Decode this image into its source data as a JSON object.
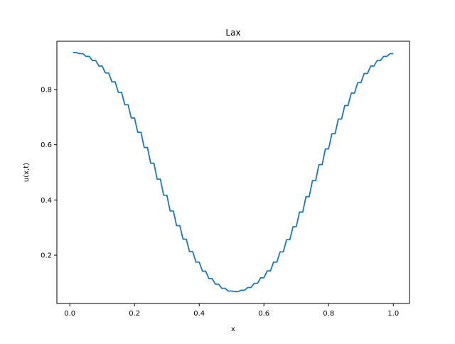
{
  "chart_data": {
    "type": "line",
    "title": "Lax",
    "xlabel": "x",
    "ylabel": "u(x,t)",
    "xlim": [
      -0.04,
      1.05
    ],
    "ylim": [
      0.025,
      0.975
    ],
    "xticks": [
      0.0,
      0.2,
      0.4,
      0.6,
      0.8,
      1.0
    ],
    "xtick_labels": [
      "0.0",
      "0.2",
      "0.4",
      "0.6",
      "0.8",
      "1.0"
    ],
    "yticks": [
      0.2,
      0.4,
      0.6,
      0.8
    ],
    "ytick_labels": [
      "0.2",
      "0.4",
      "0.6",
      "0.8"
    ],
    "grid": false,
    "legend": "none",
    "series": [
      {
        "color": "#1f77b4",
        "x": [
          0.01,
          0.02,
          0.03,
          0.04,
          0.05,
          0.06,
          0.07,
          0.08,
          0.09,
          0.1,
          0.11,
          0.12,
          0.13,
          0.14,
          0.15,
          0.16,
          0.17,
          0.18,
          0.19,
          0.2,
          0.21,
          0.22,
          0.23,
          0.24,
          0.25,
          0.26,
          0.27,
          0.28,
          0.29,
          0.3,
          0.31,
          0.32,
          0.33,
          0.34,
          0.35,
          0.36,
          0.37,
          0.38,
          0.39,
          0.4,
          0.41,
          0.42,
          0.43,
          0.44,
          0.45,
          0.46,
          0.47,
          0.48,
          0.49,
          0.5,
          0.51,
          0.52,
          0.53,
          0.54,
          0.55,
          0.56,
          0.57,
          0.58,
          0.59,
          0.6,
          0.61,
          0.62,
          0.63,
          0.64,
          0.65,
          0.66,
          0.67,
          0.68,
          0.69,
          0.7,
          0.71,
          0.72,
          0.73,
          0.74,
          0.75,
          0.76,
          0.77,
          0.78,
          0.79,
          0.8,
          0.81,
          0.82,
          0.83,
          0.84,
          0.85,
          0.86,
          0.87,
          0.88,
          0.89,
          0.9,
          0.91,
          0.92,
          0.93,
          0.94,
          0.95,
          0.96,
          0.97,
          0.98,
          0.99,
          1.0
        ],
        "y": [
          0.934,
          0.934,
          0.93,
          0.93,
          0.92,
          0.92,
          0.905,
          0.905,
          0.885,
          0.885,
          0.86,
          0.86,
          0.828,
          0.828,
          0.79,
          0.79,
          0.745,
          0.745,
          0.697,
          0.697,
          0.645,
          0.645,
          0.59,
          0.59,
          0.533,
          0.533,
          0.475,
          0.475,
          0.417,
          0.417,
          0.36,
          0.36,
          0.307,
          0.307,
          0.258,
          0.258,
          0.213,
          0.213,
          0.175,
          0.175,
          0.142,
          0.142,
          0.115,
          0.115,
          0.095,
          0.095,
          0.08,
          0.08,
          0.07,
          0.07,
          0.068,
          0.068,
          0.073,
          0.073,
          0.083,
          0.083,
          0.098,
          0.098,
          0.118,
          0.118,
          0.143,
          0.143,
          0.175,
          0.175,
          0.212,
          0.212,
          0.256,
          0.256,
          0.303,
          0.303,
          0.356,
          0.356,
          0.412,
          0.412,
          0.47,
          0.47,
          0.528,
          0.528,
          0.585,
          0.585,
          0.64,
          0.64,
          0.693,
          0.693,
          0.742,
          0.742,
          0.787,
          0.787,
          0.825,
          0.825,
          0.858,
          0.858,
          0.885,
          0.885,
          0.905,
          0.905,
          0.92,
          0.92,
          0.93,
          0.93
        ]
      }
    ]
  }
}
